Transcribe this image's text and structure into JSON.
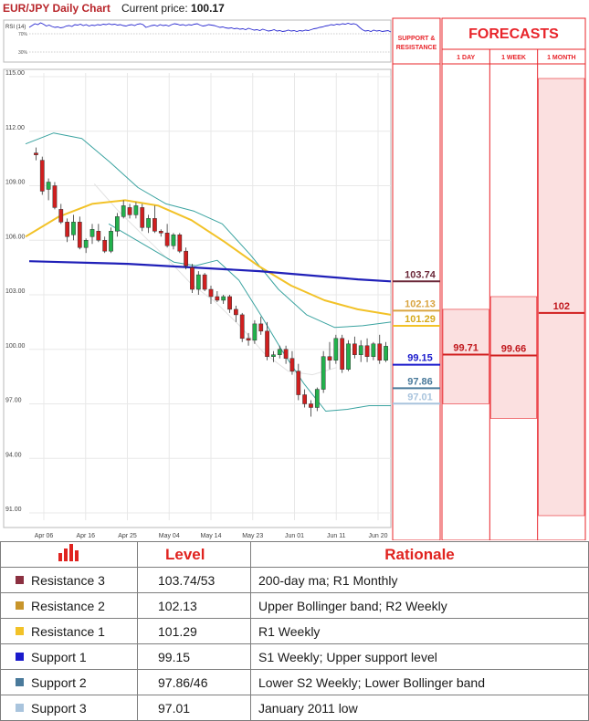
{
  "header": {
    "title": "EUR/JPY Daily Chart",
    "price_label": "Current price:",
    "price_value": "100.17"
  },
  "rsi": {
    "label": "RSI (14)",
    "upper_tick": "70%",
    "lower_tick": "30%",
    "color": "#2b2bd0"
  },
  "chart_data": {
    "type": "candlestick",
    "title": "EUR/JPY Daily Chart",
    "ylim": [
      91.0,
      115.0
    ],
    "y_ticks": [
      "115.00",
      "112.00",
      "109.00",
      "106.00",
      "103.00",
      "100.00",
      "97.00",
      "94.00",
      "91.00"
    ],
    "x_ticks": [
      "Apr 06",
      "Apr 16",
      "Apr 25",
      "May 04",
      "May 14",
      "May 23",
      "Jun 01",
      "Jun 11",
      "Jun 20"
    ],
    "candles": [
      [
        110.8,
        111.1,
        110.4,
        110.7
      ],
      [
        110.4,
        110.6,
        108.5,
        108.7
      ],
      [
        108.8,
        109.4,
        108.2,
        109.2
      ],
      [
        109.0,
        109.2,
        107.7,
        107.8
      ],
      [
        107.7,
        108.0,
        106.9,
        107.0
      ],
      [
        107.0,
        107.2,
        105.9,
        106.2
      ],
      [
        106.3,
        107.4,
        106.0,
        107.0
      ],
      [
        107.0,
        107.3,
        105.5,
        105.6
      ],
      [
        105.6,
        106.1,
        105.3,
        106.0
      ],
      [
        106.2,
        106.9,
        105.8,
        106.6
      ],
      [
        106.5,
        106.9,
        105.9,
        106.0
      ],
      [
        106.0,
        106.2,
        105.3,
        105.4
      ],
      [
        105.4,
        106.7,
        105.3,
        106.5
      ],
      [
        106.5,
        107.5,
        106.2,
        107.3
      ],
      [
        107.3,
        108.2,
        107.2,
        107.9
      ],
      [
        107.8,
        108.0,
        107.2,
        107.4
      ],
      [
        107.4,
        108.1,
        107.2,
        107.9
      ],
      [
        107.8,
        108.0,
        106.5,
        106.7
      ],
      [
        106.7,
        107.4,
        106.4,
        107.2
      ],
      [
        107.2,
        107.9,
        106.4,
        106.5
      ],
      [
        106.5,
        106.6,
        106.2,
        106.4
      ],
      [
        106.4,
        106.9,
        105.6,
        105.7
      ],
      [
        105.7,
        106.4,
        105.5,
        106.3
      ],
      [
        106.3,
        106.4,
        105.3,
        105.4
      ],
      [
        105.4,
        105.6,
        104.4,
        104.6
      ],
      [
        104.5,
        104.7,
        103.1,
        103.3
      ],
      [
        103.3,
        104.3,
        103.0,
        104.1
      ],
      [
        104.1,
        104.2,
        103.2,
        103.3
      ],
      [
        103.3,
        103.5,
        102.5,
        102.9
      ],
      [
        102.9,
        103.2,
        102.6,
        102.7
      ],
      [
        102.7,
        103.0,
        102.5,
        102.9
      ],
      [
        102.9,
        103.0,
        102.0,
        102.2
      ],
      [
        102.2,
        102.4,
        101.5,
        101.9
      ],
      [
        101.9,
        102.0,
        100.4,
        100.6
      ],
      [
        100.6,
        100.9,
        100.2,
        100.5
      ],
      [
        100.5,
        101.6,
        100.3,
        101.4
      ],
      [
        101.4,
        101.8,
        100.8,
        101.0
      ],
      [
        101.0,
        101.5,
        99.4,
        99.6
      ],
      [
        99.6,
        99.9,
        99.3,
        99.7
      ],
      [
        99.7,
        100.2,
        99.5,
        100.0
      ],
      [
        100.0,
        100.2,
        99.2,
        99.5
      ],
      [
        99.5,
        99.9,
        98.6,
        98.8
      ],
      [
        98.8,
        99.2,
        97.2,
        97.5
      ],
      [
        97.5,
        97.8,
        96.8,
        97.0
      ],
      [
        97.0,
        97.2,
        96.3,
        96.8
      ],
      [
        96.8,
        97.9,
        96.6,
        97.8
      ],
      [
        97.8,
        99.9,
        97.6,
        99.6
      ],
      [
        99.6,
        100.4,
        98.9,
        99.4
      ],
      [
        99.4,
        100.8,
        99.2,
        100.6
      ],
      [
        100.6,
        100.8,
        98.7,
        98.9
      ],
      [
        98.9,
        100.5,
        98.8,
        100.3
      ],
      [
        100.3,
        100.7,
        99.5,
        99.7
      ],
      [
        99.7,
        100.5,
        99.3,
        100.2
      ],
      [
        100.2,
        100.6,
        99.3,
        99.6
      ],
      [
        99.6,
        100.4,
        99.4,
        100.3
      ],
      [
        100.3,
        100.8,
        99.2,
        99.4
      ],
      [
        99.4,
        100.4,
        99.3,
        100.17
      ]
    ],
    "ma_200": [
      104.85,
      104.8,
      104.75,
      104.7,
      104.6,
      104.5,
      104.4,
      104.3,
      104.15,
      104.0,
      103.85,
      103.74
    ],
    "ma_50": [
      106.2,
      107.3,
      108.0,
      108.2,
      107.9,
      107.1,
      105.9,
      104.6,
      103.5,
      102.7,
      102.2,
      101.9
    ],
    "bb_upper": [
      111.3,
      111.9,
      111.6,
      110.3,
      108.9,
      108.0,
      107.6,
      106.9,
      105.2,
      103.3,
      101.9,
      101.2,
      101.3,
      101.5
    ],
    "bb_lower": [
      106.9,
      106.2,
      105.5,
      104.8,
      104.6,
      104.9,
      103.8,
      101.9,
      99.9,
      98.1,
      96.6,
      96.7,
      96.9,
      96.9
    ],
    "bb_middle": [
      109.1,
      107.6,
      106.3,
      105.0,
      103.6,
      102.6,
      101.3,
      99.8,
      98.8,
      98.6,
      99.0
    ]
  },
  "levels_panel": {
    "header_line1": "SUPPORT &",
    "header_line2": "RESISTANCE",
    "items": [
      {
        "value": 103.74,
        "label": "103.74",
        "color": "#6b2839",
        "text_color": "#6b2839"
      },
      {
        "value": 102.13,
        "label": "102.13",
        "color": "#d9a441",
        "text_color": "#d9a441"
      },
      {
        "value": 101.29,
        "label": "101.29",
        "color": "#f2c228",
        "text_color": "#d6a91a"
      },
      {
        "value": 99.15,
        "label": "99.15",
        "color": "#1a1acc",
        "text_color": "#1a1acc"
      },
      {
        "value": 97.86,
        "label": "97.86",
        "color": "#4a7a9b",
        "text_color": "#4a7a9b"
      },
      {
        "value": 97.01,
        "label": "97.01",
        "color": "#a9c4dd",
        "text_color": "#a9c4dd"
      }
    ]
  },
  "forecasts": {
    "title": "FORECASTS",
    "columns": [
      {
        "label": "1 DAY",
        "value": 99.71,
        "value_label": "99.71",
        "range": [
          97.0,
          102.2
        ]
      },
      {
        "label": "1 WEEK",
        "value": 99.66,
        "value_label": "99.66",
        "range": [
          96.2,
          102.9
        ]
      },
      {
        "label": "1 MONTH",
        "value": 102,
        "value_label": "102",
        "range": [
          90.85,
          114.9
        ]
      }
    ]
  },
  "colors": {
    "candle_up": "#22b14c",
    "candle_down": "#d01f1f",
    "ma_200": "#2020b8",
    "ma_50": "#f2c228",
    "bollinger": "#3aa3a0",
    "bb_middle": "#e2e2e2",
    "panel_red": "#e8242a",
    "forecast_fill": "#fbe0e0",
    "forecast_line": "#d01f1f"
  },
  "table": {
    "col_level": "Level",
    "col_rationale": "Rationale",
    "rows": [
      {
        "name": "Resistance 3",
        "level": "103.74/53",
        "rationale": "200-day ma; R1 Monthly",
        "color": "#8b3040"
      },
      {
        "name": "Resistance 2",
        "level": "102.13",
        "rationale": "Upper Bollinger band; R2 Weekly",
        "color": "#c8952b"
      },
      {
        "name": "Resistance 1",
        "level": "101.29",
        "rationale": "R1 Weekly",
        "color": "#f2c228"
      },
      {
        "name": "Support 1",
        "level": "99.15",
        "rationale": "S1 Weekly; Upper support level",
        "color": "#1a1acc"
      },
      {
        "name": "Support 2",
        "level": "97.86/46",
        "rationale": "Lower S2 Weekly;  Lower Bollinger band",
        "color": "#4a7a9b"
      },
      {
        "name": "Support 3",
        "level": "97.01",
        "rationale": "January 2011 low",
        "color": "#a9c4dd"
      }
    ]
  }
}
